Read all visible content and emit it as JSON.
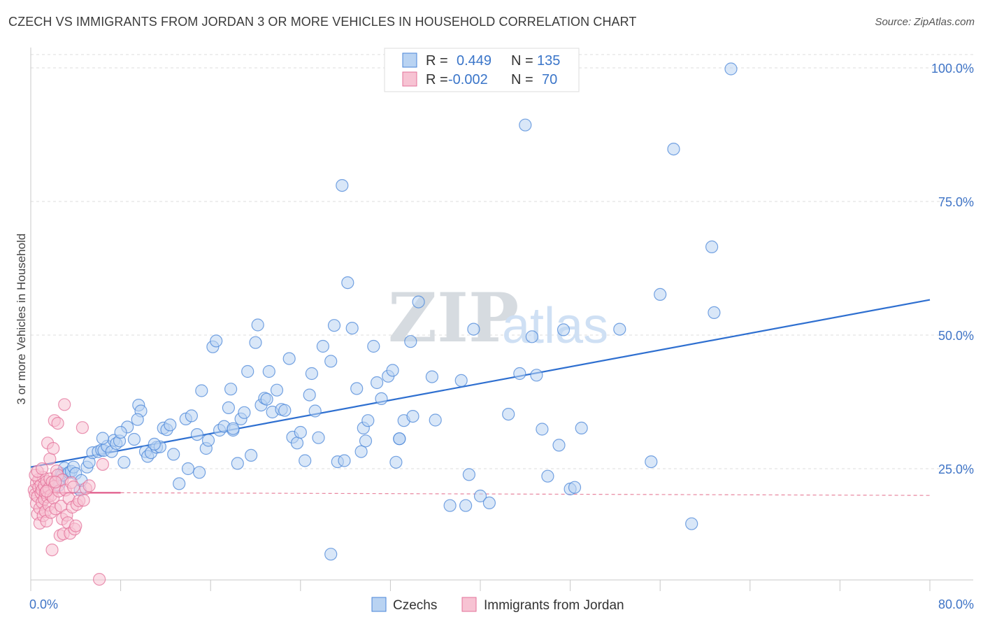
{
  "chart_data": {
    "type": "scatter",
    "title": "CZECH VS IMMIGRANTS FROM JORDAN 3 OR MORE VEHICLES IN HOUSEHOLD CORRELATION CHART",
    "source": "Source: ZipAtlas.com",
    "xlabel": "",
    "ylabel": "3 or more Vehicles in Household",
    "xlim": [
      0,
      80
    ],
    "ylim": [
      0,
      100
    ],
    "x_tick_labels": {
      "min": "0.0%",
      "max": "80.0%"
    },
    "y_ticks": [
      {
        "value": 25,
        "label": "25.0%"
      },
      {
        "value": 50,
        "label": "50.0%"
      },
      {
        "value": 75,
        "label": "75.0%"
      },
      {
        "value": 100,
        "label": "100.0%"
      }
    ],
    "watermark": {
      "zip": "ZIP",
      "atlas": "atlas"
    },
    "legend": [
      {
        "r_label": "R =",
        "r_value": "0.449",
        "n_label": "N =",
        "n_value": "135"
      },
      {
        "r_label": "R =",
        "r_value": "-0.002",
        "n_label": "N =",
        "n_value": "70"
      }
    ],
    "series": [
      {
        "name": "Czechs",
        "color": "#4a86d8",
        "fill": "#b9d3f2",
        "trend": {
          "x": [
            0,
            80
          ],
          "y": [
            25.3,
            56.6
          ]
        },
        "points": [
          [
            2.5,
            22.8
          ],
          [
            2.5,
            21.9
          ],
          [
            2.7,
            24.1
          ],
          [
            2.8,
            23.8
          ],
          [
            3.0,
            25.1
          ],
          [
            3.4,
            24.3
          ],
          [
            3.6,
            24.5
          ],
          [
            3.8,
            25.3
          ],
          [
            4.0,
            24.1
          ],
          [
            4.4,
            21.0
          ],
          [
            4.5,
            22.8
          ],
          [
            5.0,
            25.3
          ],
          [
            5.2,
            26.2
          ],
          [
            5.5,
            28.0
          ],
          [
            6.0,
            28.2
          ],
          [
            6.3,
            28.5
          ],
          [
            6.5,
            28.4
          ],
          [
            6.8,
            29.2
          ],
          [
            7.2,
            28.2
          ],
          [
            7.4,
            30.3
          ],
          [
            7.6,
            29.7
          ],
          [
            7.9,
            30.2
          ],
          [
            8.3,
            26.2
          ],
          [
            8.6,
            32.8
          ],
          [
            9.2,
            30.5
          ],
          [
            9.6,
            36.9
          ],
          [
            9.8,
            35.8
          ],
          [
            10.2,
            28.2
          ],
          [
            10.4,
            27.3
          ],
          [
            10.7,
            28.0
          ],
          [
            11.2,
            29.0
          ],
          [
            11.5,
            29.1
          ],
          [
            11.8,
            32.6
          ],
          [
            12.1,
            32.3
          ],
          [
            12.4,
            33.2
          ],
          [
            12.7,
            27.7
          ],
          [
            13.2,
            22.2
          ],
          [
            13.8,
            34.3
          ],
          [
            14.0,
            25.0
          ],
          [
            14.3,
            34.9
          ],
          [
            14.8,
            31.4
          ],
          [
            15.0,
            24.3
          ],
          [
            15.2,
            39.6
          ],
          [
            15.6,
            28.8
          ],
          [
            15.8,
            30.3
          ],
          [
            16.2,
            47.8
          ],
          [
            16.5,
            48.9
          ],
          [
            16.8,
            32.2
          ],
          [
            17.2,
            32.9
          ],
          [
            17.6,
            36.4
          ],
          [
            17.8,
            39.9
          ],
          [
            18.0,
            32.2
          ],
          [
            18.4,
            26.0
          ],
          [
            18.7,
            34.3
          ],
          [
            19.0,
            35.5
          ],
          [
            19.3,
            43.2
          ],
          [
            19.6,
            27.5
          ],
          [
            20.0,
            48.6
          ],
          [
            20.2,
            51.9
          ],
          [
            20.5,
            36.9
          ],
          [
            20.8,
            38.2
          ],
          [
            21.2,
            43.2
          ],
          [
            21.5,
            35.6
          ],
          [
            21.9,
            39.7
          ],
          [
            22.3,
            36.1
          ],
          [
            22.6,
            35.9
          ],
          [
            23.0,
            45.6
          ],
          [
            23.3,
            30.9
          ],
          [
            23.7,
            29.8
          ],
          [
            24.0,
            31.8
          ],
          [
            24.4,
            26.5
          ],
          [
            24.8,
            38.8
          ],
          [
            25.0,
            42.8
          ],
          [
            25.3,
            35.8
          ],
          [
            25.6,
            30.8
          ],
          [
            26.0,
            47.9
          ],
          [
            26.7,
            45.1
          ],
          [
            27.0,
            51.8
          ],
          [
            27.3,
            26.3
          ],
          [
            27.7,
            78.0
          ],
          [
            27.9,
            26.5
          ],
          [
            28.2,
            59.8
          ],
          [
            28.6,
            51.3
          ],
          [
            29.0,
            40.0
          ],
          [
            29.4,
            28.2
          ],
          [
            29.6,
            32.6
          ],
          [
            30.0,
            34.0
          ],
          [
            30.5,
            47.9
          ],
          [
            30.8,
            41.1
          ],
          [
            31.2,
            38.1
          ],
          [
            31.8,
            42.3
          ],
          [
            32.2,
            43.4
          ],
          [
            32.5,
            26.2
          ],
          [
            32.8,
            30.6
          ],
          [
            33.2,
            34.0
          ],
          [
            33.8,
            48.8
          ],
          [
            34.0,
            34.8
          ],
          [
            34.5,
            56.2
          ],
          [
            35.7,
            42.2
          ],
          [
            36.0,
            34.1
          ],
          [
            37.3,
            18.1
          ],
          [
            38.3,
            41.5
          ],
          [
            38.7,
            18.1
          ],
          [
            39.0,
            23.9
          ],
          [
            39.4,
            51.1
          ],
          [
            40.0,
            19.9
          ],
          [
            40.8,
            18.6
          ],
          [
            42.5,
            35.2
          ],
          [
            43.5,
            42.8
          ],
          [
            44.0,
            89.3
          ],
          [
            44.6,
            49.7
          ],
          [
            45.0,
            42.5
          ],
          [
            45.5,
            32.4
          ],
          [
            46.0,
            23.6
          ],
          [
            47.0,
            29.4
          ],
          [
            47.4,
            51.0
          ],
          [
            48.0,
            21.2
          ],
          [
            48.4,
            21.5
          ],
          [
            49.0,
            32.6
          ],
          [
            52.4,
            51.1
          ],
          [
            55.2,
            26.3
          ],
          [
            56.0,
            57.6
          ],
          [
            57.2,
            84.8
          ],
          [
            58.8,
            14.7
          ],
          [
            60.6,
            66.5
          ],
          [
            60.8,
            54.2
          ],
          [
            62.3,
            99.8
          ],
          [
            26.7,
            9.0
          ],
          [
            32.8,
            30.6
          ],
          [
            18.0,
            32.5
          ],
          [
            11.0,
            29.6
          ],
          [
            8.0,
            31.8
          ],
          [
            6.4,
            30.7
          ],
          [
            9.5,
            34.2
          ],
          [
            21.0,
            38.0
          ],
          [
            29.8,
            30.2
          ]
        ]
      },
      {
        "name": "Immigrants from Jordan",
        "color": "#e3719a",
        "fill": "#f7c3d3",
        "trend": {
          "x": [
            0,
            8
          ],
          "y": [
            20.5,
            20.5
          ]
        },
        "trend_ext": {
          "x": [
            8,
            80
          ],
          "y": [
            20.5,
            20.0
          ]
        },
        "points": [
          [
            0.3,
            21.0
          ],
          [
            0.4,
            20.2
          ],
          [
            0.5,
            18.5
          ],
          [
            0.5,
            22.3
          ],
          [
            0.6,
            16.5
          ],
          [
            0.6,
            19.8
          ],
          [
            0.7,
            21.5
          ],
          [
            0.7,
            23.0
          ],
          [
            0.8,
            14.8
          ],
          [
            0.8,
            17.6
          ],
          [
            0.9,
            20.5
          ],
          [
            0.9,
            22.0
          ],
          [
            1.0,
            18.7
          ],
          [
            1.0,
            21.0
          ],
          [
            1.1,
            16.2
          ],
          [
            1.1,
            23.4
          ],
          [
            1.2,
            19.3
          ],
          [
            1.2,
            21.8
          ],
          [
            1.3,
            17.0
          ],
          [
            1.3,
            20.5
          ],
          [
            1.4,
            22.6
          ],
          [
            1.4,
            15.2
          ],
          [
            1.5,
            29.8
          ],
          [
            1.5,
            19.7
          ],
          [
            1.6,
            21.3
          ],
          [
            1.6,
            18.2
          ],
          [
            1.7,
            26.8
          ],
          [
            1.7,
            23.1
          ],
          [
            1.8,
            20.0
          ],
          [
            1.8,
            16.8
          ],
          [
            1.9,
            22.5
          ],
          [
            1.9,
            9.8
          ],
          [
            2.0,
            28.8
          ],
          [
            2.0,
            19.5
          ],
          [
            2.1,
            34.0
          ],
          [
            2.1,
            21.7
          ],
          [
            2.2,
            17.5
          ],
          [
            2.3,
            24.6
          ],
          [
            2.4,
            33.5
          ],
          [
            2.4,
            23.8
          ],
          [
            2.5,
            20.8
          ],
          [
            2.6,
            12.5
          ],
          [
            2.7,
            18.0
          ],
          [
            2.8,
            15.6
          ],
          [
            2.8,
            22.9
          ],
          [
            2.9,
            12.8
          ],
          [
            3.0,
            37.0
          ],
          [
            3.1,
            21.0
          ],
          [
            3.2,
            16.3
          ],
          [
            3.3,
            14.9
          ],
          [
            3.4,
            19.4
          ],
          [
            3.5,
            12.9
          ],
          [
            3.6,
            22.4
          ],
          [
            3.7,
            17.8
          ],
          [
            3.8,
            21.6
          ],
          [
            3.9,
            13.7
          ],
          [
            4.0,
            14.3
          ],
          [
            4.1,
            18.3
          ],
          [
            4.3,
            19.0
          ],
          [
            4.6,
            32.7
          ],
          [
            4.7,
            19.1
          ],
          [
            4.9,
            21.3
          ],
          [
            5.2,
            21.8
          ],
          [
            6.1,
            4.3
          ],
          [
            6.4,
            25.8
          ],
          [
            0.4,
            23.8
          ],
          [
            0.6,
            24.5
          ],
          [
            1.0,
            25.0
          ],
          [
            2.2,
            22.5
          ],
          [
            1.4,
            20.8
          ]
        ]
      }
    ]
  }
}
